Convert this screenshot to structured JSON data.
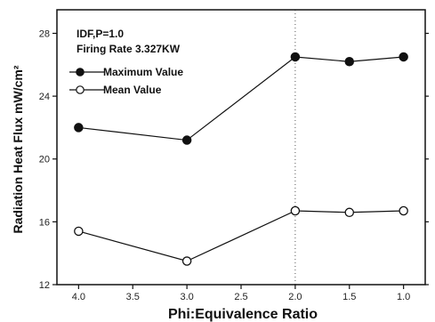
{
  "chart_data": {
    "type": "line",
    "title": "",
    "xlabel": "Phi:Equivalence Ratio",
    "ylabel": "Radiation Heat Flux mW/cm²",
    "annotation_lines": [
      "IDF,P=1.0",
      "Firing Rate 3.327KW"
    ],
    "categories": [
      "4.0",
      "3.0",
      "2.0",
      "1.5",
      "1.0"
    ],
    "x_ticks": [
      "4.0",
      "3.5",
      "3.0",
      "2.5",
      "2.0",
      "1.5",
      "1.0"
    ],
    "y_ticks": [
      "12",
      "16",
      "20",
      "24",
      "28"
    ],
    "ylim": [
      12,
      29.5
    ],
    "reference_line_at": "2.0",
    "legend_position": "top-left",
    "series": [
      {
        "name": "Maximum Value",
        "marker": "filled-circle",
        "values": [
          22.0,
          21.2,
          26.5,
          26.2,
          26.5
        ]
      },
      {
        "name": "Mean Value",
        "marker": "open-circle",
        "values": [
          15.4,
          13.5,
          16.7,
          16.6,
          16.7
        ]
      }
    ]
  }
}
